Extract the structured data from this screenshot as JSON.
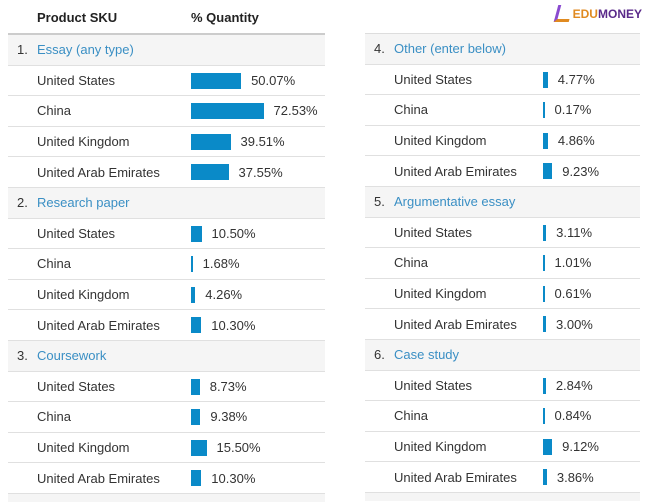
{
  "header": {
    "col_sku": "Product SKU",
    "col_quantity": "% Quantity"
  },
  "logo": {
    "text_a": "EDU",
    "text_b": "MONEY"
  },
  "colors": {
    "bar": "#0a8ac8",
    "link": "#3a8fc4"
  },
  "left_groups": [
    {
      "num": "1.",
      "label": "Essay (any type)",
      "rows": [
        {
          "country": "United States",
          "value": 50.07,
          "pct": "50.07%"
        },
        {
          "country": "China",
          "value": 72.53,
          "pct": "72.53%"
        },
        {
          "country": "United Kingdom",
          "value": 39.51,
          "pct": "39.51%"
        },
        {
          "country": "United Arab Emirates",
          "value": 37.55,
          "pct": "37.55%"
        }
      ]
    },
    {
      "num": "2.",
      "label": "Research paper",
      "rows": [
        {
          "country": "United States",
          "value": 10.5,
          "pct": "10.50%"
        },
        {
          "country": "China",
          "value": 1.68,
          "pct": "1.68%"
        },
        {
          "country": "United Kingdom",
          "value": 4.26,
          "pct": "4.26%"
        },
        {
          "country": "United Arab Emirates",
          "value": 10.3,
          "pct": "10.30%"
        }
      ]
    },
    {
      "num": "3.",
      "label": "Coursework",
      "rows": [
        {
          "country": "United States",
          "value": 8.73,
          "pct": "8.73%"
        },
        {
          "country": "China",
          "value": 9.38,
          "pct": "9.38%"
        },
        {
          "country": "United Kingdom",
          "value": 15.5,
          "pct": "15.50%"
        },
        {
          "country": "United Arab Emirates",
          "value": 10.3,
          "pct": "10.30%"
        }
      ]
    }
  ],
  "right_groups": [
    {
      "num": "4.",
      "label": "Other (enter below)",
      "rows": [
        {
          "country": "United States",
          "value": 4.77,
          "pct": "4.77%"
        },
        {
          "country": "China",
          "value": 0.17,
          "pct": "0.17%"
        },
        {
          "country": "United Kingdom",
          "value": 4.86,
          "pct": "4.86%"
        },
        {
          "country": "United Arab Emirates",
          "value": 9.23,
          "pct": "9.23%"
        }
      ]
    },
    {
      "num": "5.",
      "label": "Argumentative essay",
      "rows": [
        {
          "country": "United States",
          "value": 3.11,
          "pct": "3.11%"
        },
        {
          "country": "China",
          "value": 1.01,
          "pct": "1.01%"
        },
        {
          "country": "United Kingdom",
          "value": 0.61,
          "pct": "0.61%"
        },
        {
          "country": "United Arab Emirates",
          "value": 3.0,
          "pct": "3.00%"
        }
      ]
    },
    {
      "num": "6.",
      "label": "Case study",
      "rows": [
        {
          "country": "United States",
          "value": 2.84,
          "pct": "2.84%"
        },
        {
          "country": "China",
          "value": 0.84,
          "pct": "0.84%"
        },
        {
          "country": "United Kingdom",
          "value": 9.12,
          "pct": "9.12%"
        },
        {
          "country": "United Arab Emirates",
          "value": 3.86,
          "pct": "3.86%"
        }
      ]
    }
  ]
}
